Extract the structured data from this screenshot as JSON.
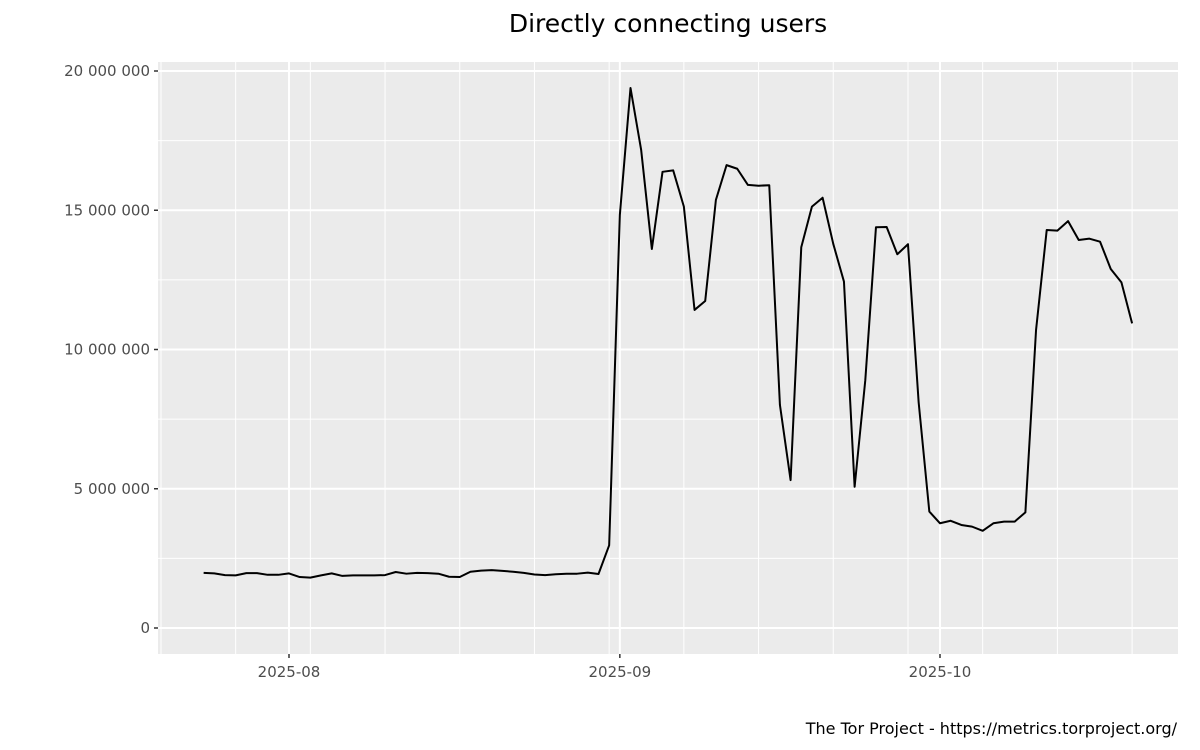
{
  "chart_data": {
    "type": "line",
    "title": "Directly connecting users",
    "caption": "The Tor Project - https://metrics.torproject.org/",
    "xlabel": "",
    "ylabel": "",
    "x_start": "2025-07-24",
    "x_end": "2025-10-19",
    "x_ticks": [
      {
        "date": "2025-08-01",
        "label": "2025-08"
      },
      {
        "date": "2025-09-01",
        "label": "2025-09"
      },
      {
        "date": "2025-10-01",
        "label": "2025-10"
      }
    ],
    "y_ticks": [
      {
        "value": 0,
        "label": "0"
      },
      {
        "value": 5000000,
        "label": "5 000 000"
      },
      {
        "value": 10000000,
        "label": "10 000 000"
      },
      {
        "value": 15000000,
        "label": "15 000 000"
      },
      {
        "value": 20000000,
        "label": "20 000 000"
      }
    ],
    "ylim": [
      0,
      20000000
    ],
    "grid": true,
    "colors": {
      "panel": "#ebebeb",
      "grid": "#ffffff",
      "line": "#000000"
    },
    "series": [
      {
        "start_date": "2025-07-24",
        "step": "1 day",
        "values": [
          1980000,
          1960000,
          1900000,
          1890000,
          1970000,
          1970000,
          1910000,
          1910000,
          1960000,
          1830000,
          1810000,
          1890000,
          1960000,
          1870000,
          1890000,
          1890000,
          1890000,
          1900000,
          2010000,
          1950000,
          1980000,
          1970000,
          1950000,
          1840000,
          1830000,
          2020000,
          2060000,
          2080000,
          2050000,
          2020000,
          1980000,
          1920000,
          1900000,
          1930000,
          1950000,
          1950000,
          1990000,
          1940000,
          2970000,
          14830000,
          19390000,
          17160000,
          13610000,
          16380000,
          16430000,
          15130000,
          11420000,
          11740000,
          15370000,
          16620000,
          16490000,
          15910000,
          15880000,
          15900000,
          8010000,
          5310000,
          13670000,
          15130000,
          15450000,
          13790000,
          12440000,
          5070000,
          8900000,
          14390000,
          14400000,
          13420000,
          13780000,
          8100000,
          4180000,
          3760000,
          3850000,
          3700000,
          3640000,
          3490000,
          3760000,
          3820000,
          3820000,
          4150000,
          10700000,
          14290000,
          14270000,
          14610000,
          13930000,
          13980000,
          13870000,
          12890000,
          12410000,
          10940000
        ]
      }
    ]
  }
}
